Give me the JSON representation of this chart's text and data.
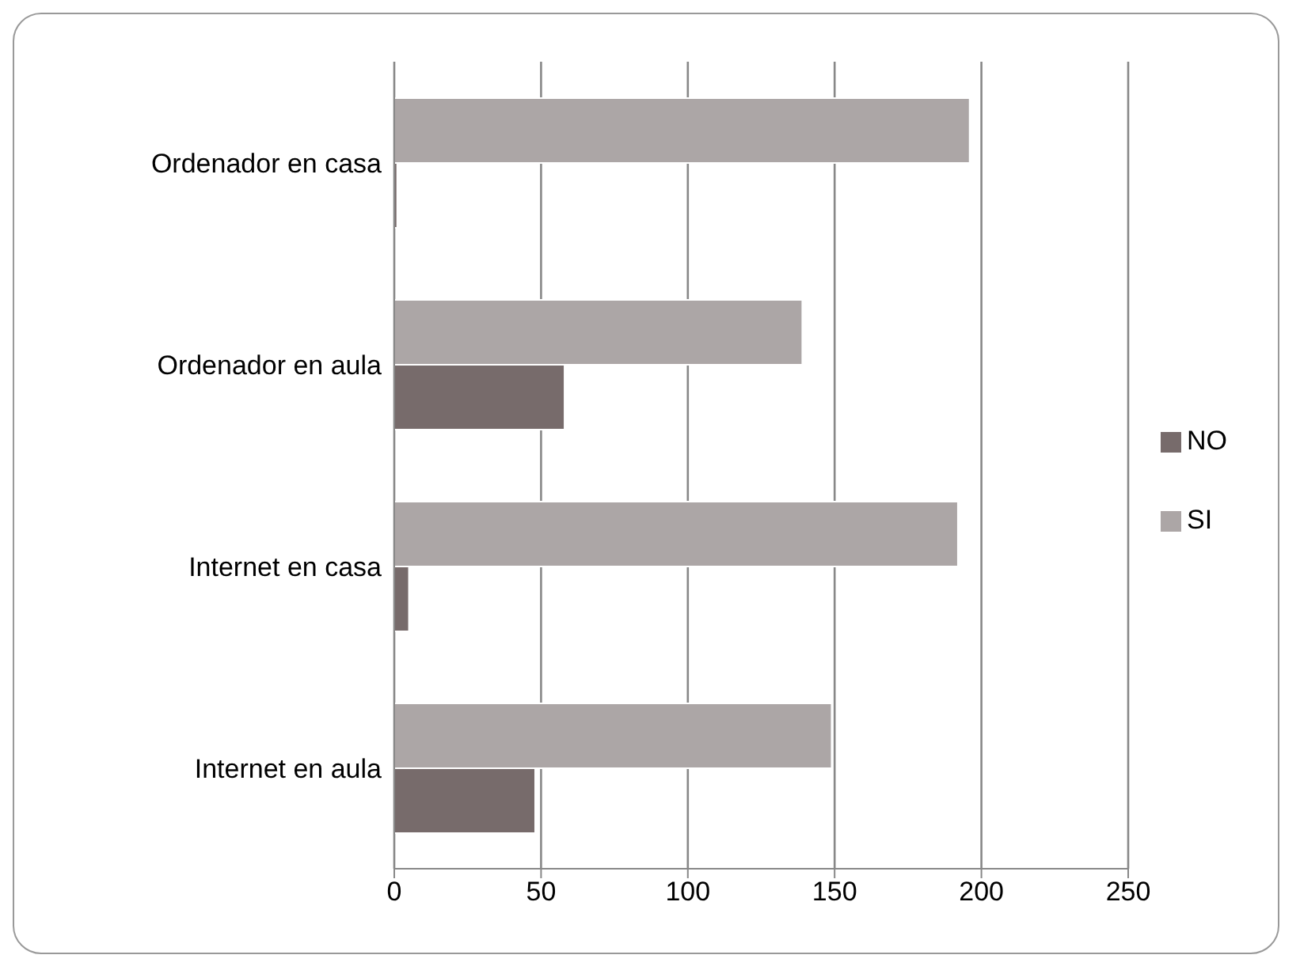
{
  "chart_data": {
    "type": "bar",
    "orientation": "horizontal",
    "categories": [
      "Ordenador en casa",
      "Ordenador en aula",
      "Internet en casa",
      "Internet en aula"
    ],
    "series": [
      {
        "name": "SI",
        "color": "#aca6a6",
        "values": [
          196,
          139,
          192,
          149
        ]
      },
      {
        "name": "NO",
        "color": "#776b6b",
        "values": [
          1,
          58,
          5,
          48
        ]
      }
    ],
    "xlim": [
      0,
      250
    ],
    "xticks": [
      0,
      50,
      100,
      150,
      200,
      250
    ],
    "grid": "x",
    "legend": "right"
  }
}
